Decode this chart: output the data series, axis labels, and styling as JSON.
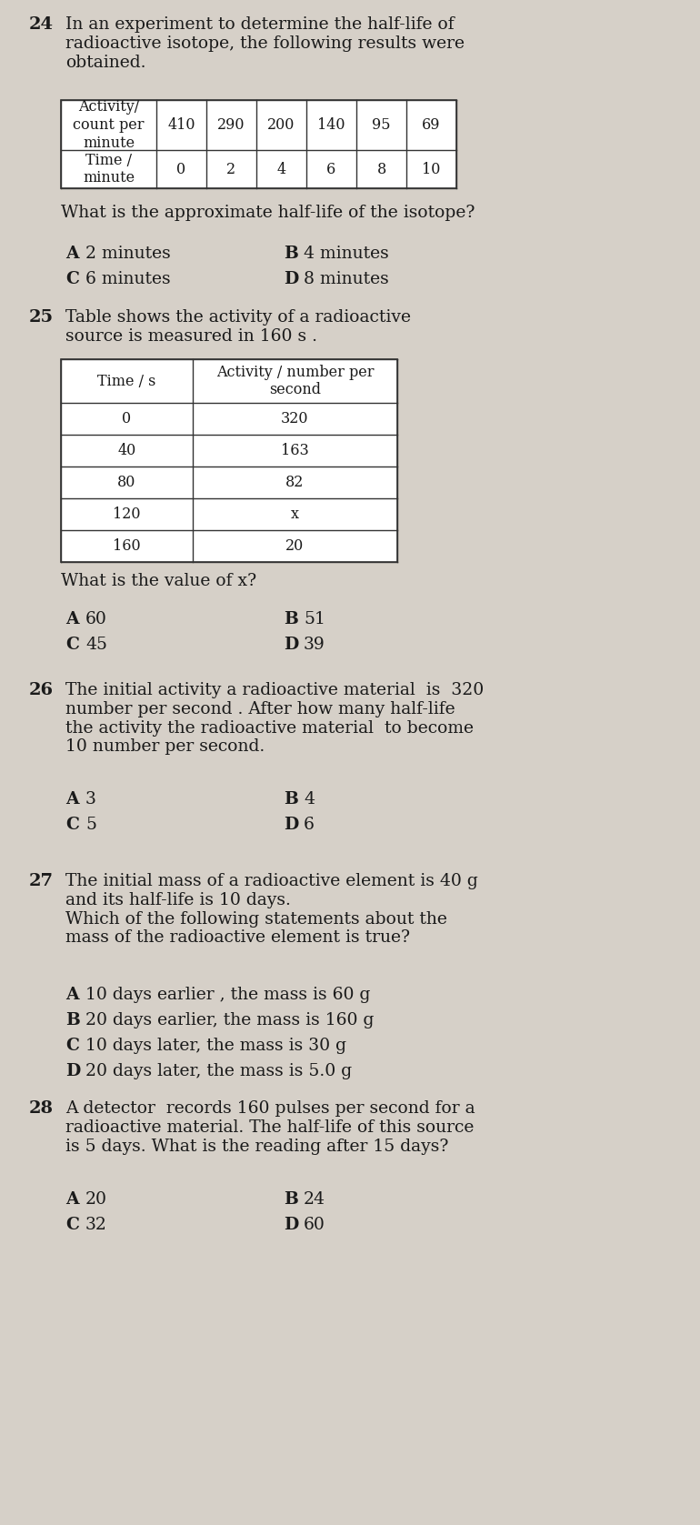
{
  "bg_color": "#d6d0c8",
  "text_color": "#1a1a1a",
  "q24": {
    "number": "24",
    "intro": "In an experiment to determine the half-life of\nradioactive isotope, the following results were\nobtained.",
    "table_header": [
      "Activity/\ncount per\nminute",
      "410",
      "290",
      "200",
      "140",
      "95",
      "69"
    ],
    "table_row2": [
      "Time /\nminute",
      "0",
      "2",
      "4",
      "6",
      "8",
      "10"
    ],
    "question": "What is the approximate half-life of the isotope?",
    "options": [
      [
        "A",
        "2 minutes",
        "B",
        "4 minutes"
      ],
      [
        "C",
        "6 minutes",
        "D",
        "8 minutes"
      ]
    ]
  },
  "q25": {
    "number": "25",
    "intro": "Table shows the activity of a radioactive\nsource is measured in 160 s .",
    "table_col1": [
      "Time / s",
      "0",
      "40",
      "80",
      "120",
      "160"
    ],
    "table_col2": [
      "Activity / number per\nsecond",
      "320",
      "163",
      "82",
      "x",
      "20"
    ],
    "question": "What is the value of x?",
    "options": [
      [
        "A",
        "60",
        "B",
        "51"
      ],
      [
        "C",
        "45",
        "D",
        "39"
      ]
    ]
  },
  "q26": {
    "number": "26",
    "intro": "The initial activity a radioactive material  is  320\nnumber per second . After how many half-life\nthe activity the radioactive material  to become\n10 number per second.",
    "options": [
      [
        "A",
        "3",
        "B",
        "4"
      ],
      [
        "C",
        "5",
        "D",
        "6"
      ]
    ]
  },
  "q27": {
    "number": "27",
    "intro": "The initial mass of a radioactive element is 40 g\nand its half-life is 10 days.\nWhich of the following statements about the\nmass of the radioactive element is true?",
    "options_vertical": [
      [
        "A",
        "10 days earlier , the mass is 60 g"
      ],
      [
        "B",
        "20 days earlier, the mass is 160 g"
      ],
      [
        "C",
        "10 days later, the mass is 30 g"
      ],
      [
        "D",
        "20 days later, the mass is 5.0 g"
      ]
    ]
  },
  "q28": {
    "number": "28",
    "intro": "A detector  records 160 pulses per second for a\nradioactive material. The half-life of this source\nis 5 days. What is the reading after 15 days?",
    "options": [
      [
        "A",
        "20",
        "B",
        "24"
      ],
      [
        "C",
        "32",
        "D",
        "60"
      ]
    ]
  }
}
